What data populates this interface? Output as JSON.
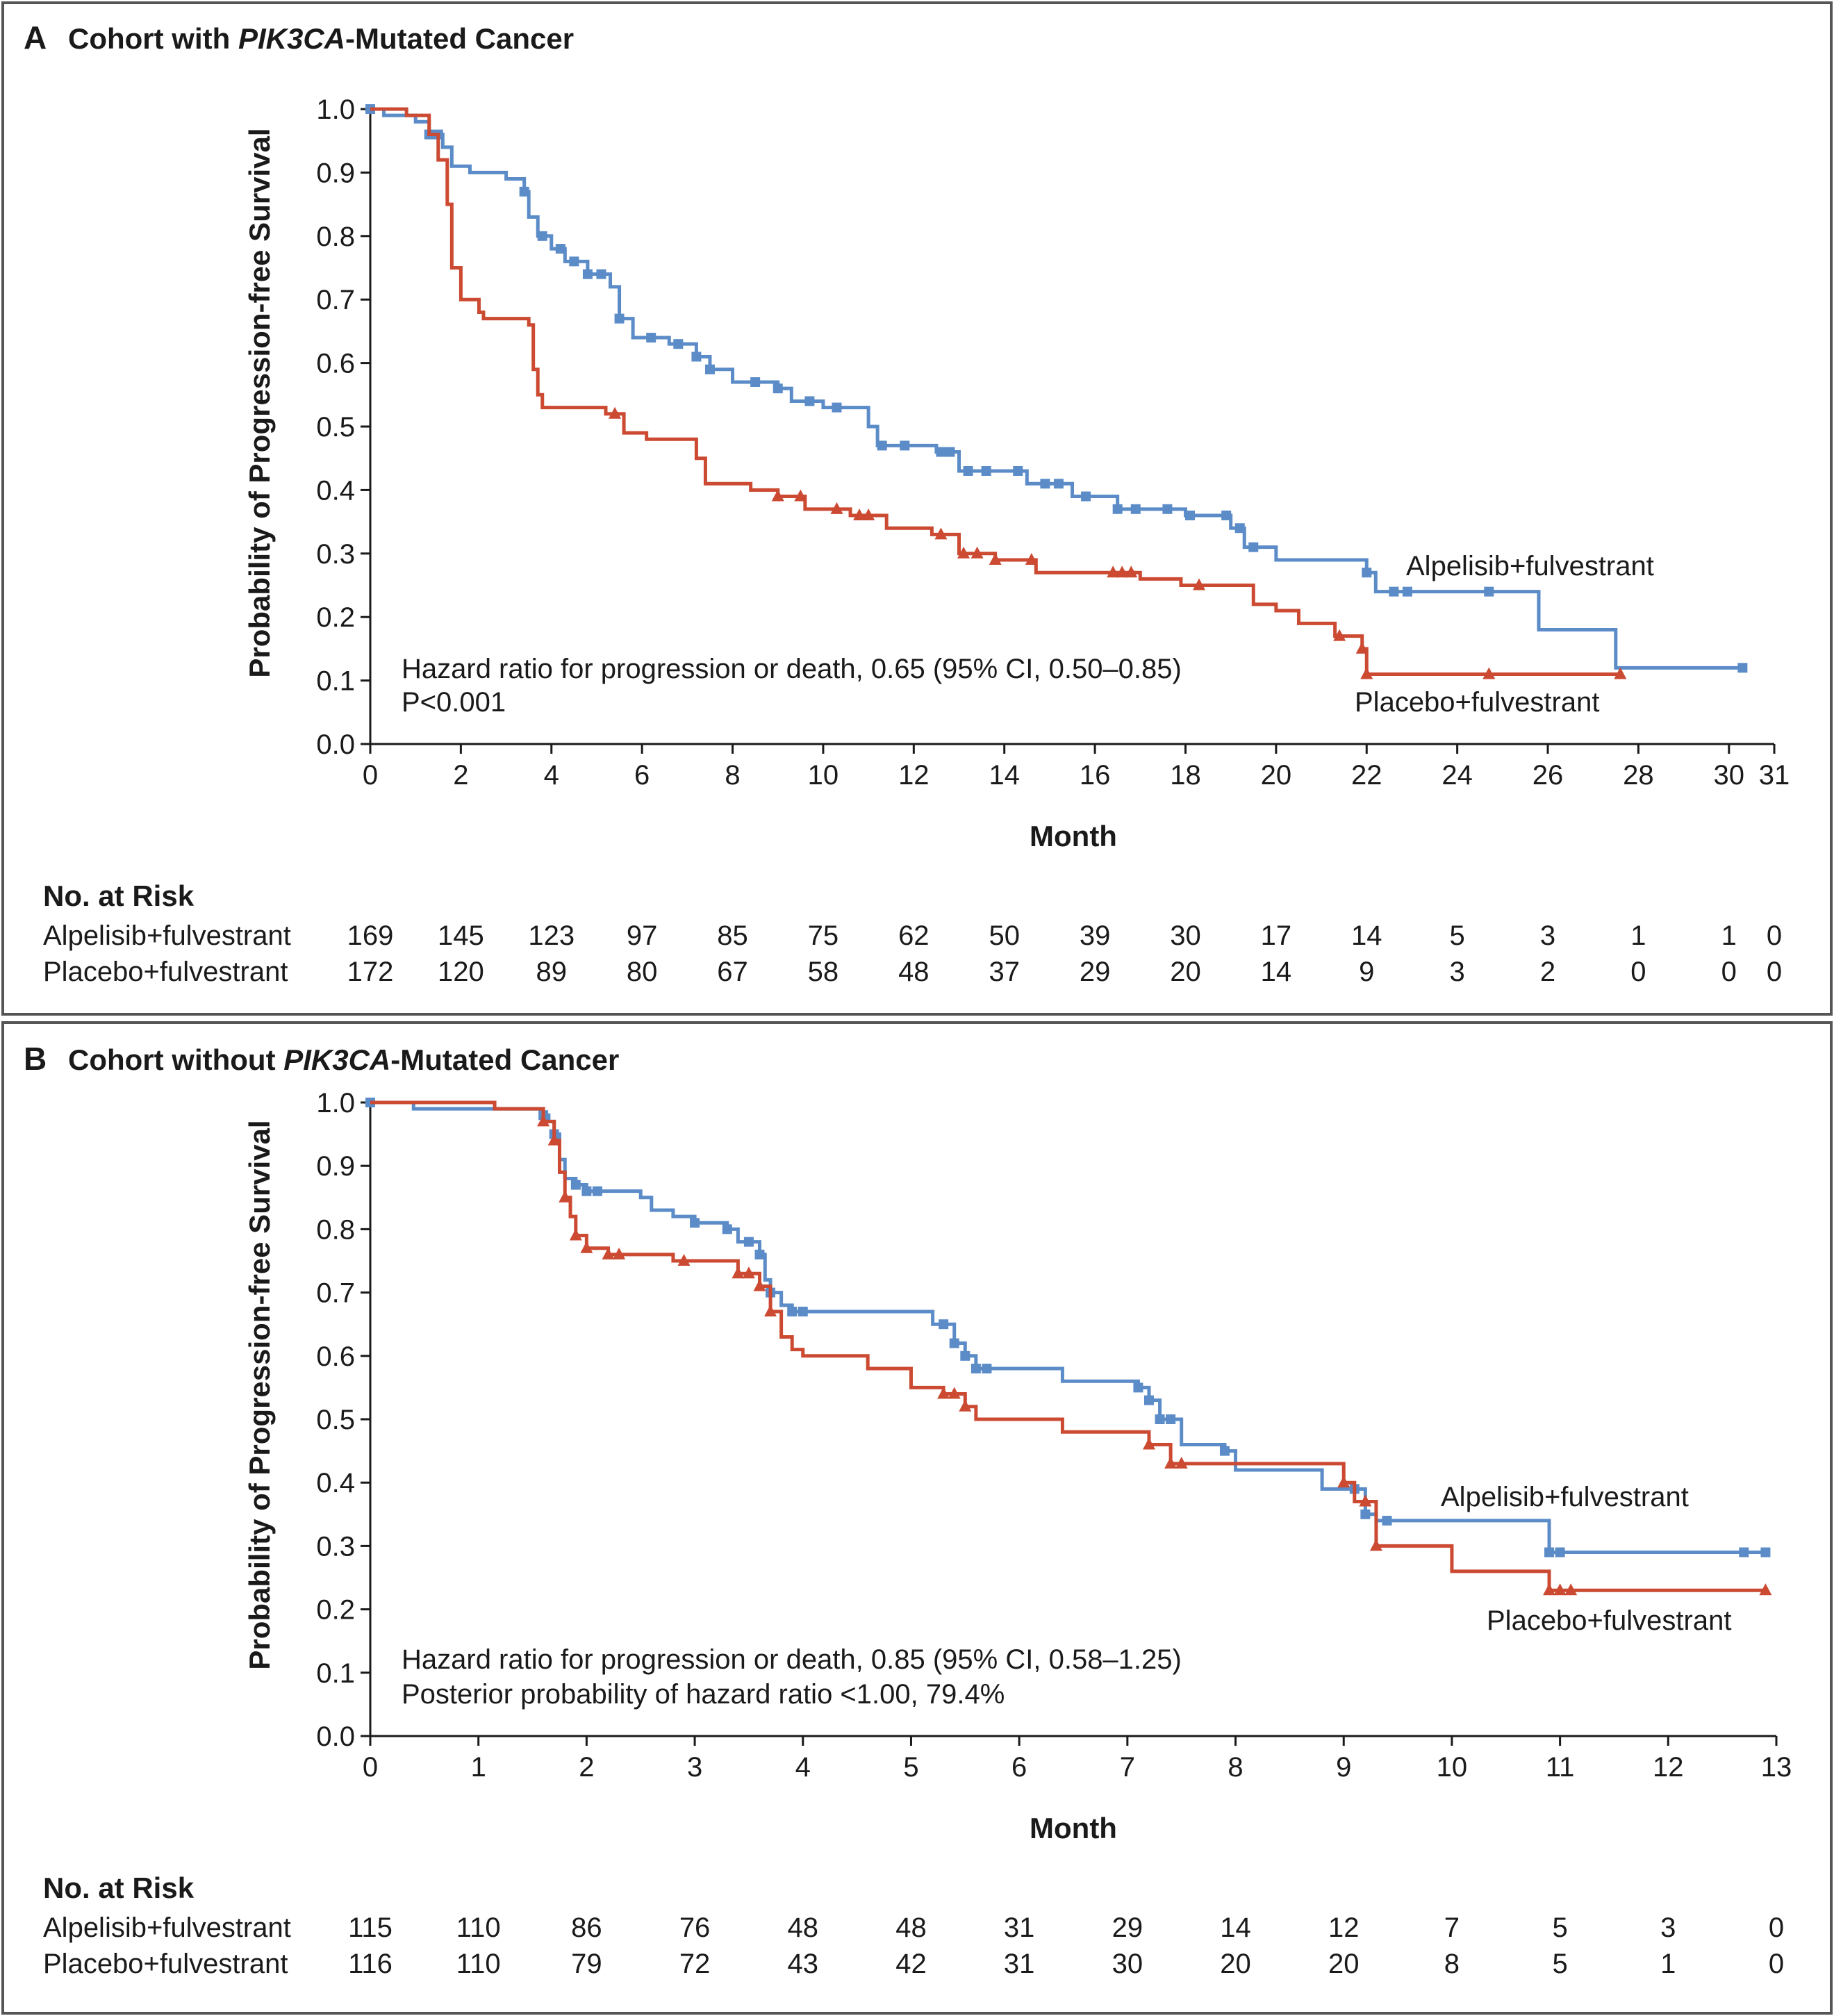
{
  "colors": {
    "alpelisib": "#5b8cc8",
    "placebo": "#cc4a32",
    "frame": "#555555"
  },
  "panels": [
    {
      "letter": "A",
      "title_pre": "Cohort with ",
      "title_italic": "PIK3CA",
      "title_post": "-Mutated Cancer",
      "annotation_line1": "Hazard ratio for progression or death, 0.65 (95% CI, 0.50–0.85)",
      "annotation_line2": "P<0.001",
      "alpelisib_label": "Alpelisib+fulvestrant",
      "placebo_label": "Placebo+fulvestrant",
      "risk": {
        "title": "No. at Risk",
        "rows": [
          {
            "name": "Alpelisib+fulvestrant",
            "values": [
              "169",
              "145",
              "123",
              "97",
              "85",
              "75",
              "62",
              "50",
              "39",
              "30",
              "17",
              "14",
              "5",
              "3",
              "1",
              "1",
              "0"
            ]
          },
          {
            "name": "Placebo+fulvestrant",
            "values": [
              "172",
              "120",
              "89",
              "80",
              "67",
              "58",
              "48",
              "37",
              "29",
              "20",
              "14",
              "9",
              "3",
              "2",
              "0",
              "0",
              "0"
            ]
          }
        ]
      }
    },
    {
      "letter": "B",
      "title_pre": "Cohort without ",
      "title_italic": "PIK3CA",
      "title_post": "-Mutated Cancer",
      "annotation_line1": "Hazard ratio for progression or death, 0.85 (95% CI, 0.58–1.25)",
      "annotation_line2": "Posterior probability of hazard ratio <1.00, 79.4%",
      "alpelisib_label": "Alpelisib+fulvestrant",
      "placebo_label": "Placebo+fulvestrant",
      "risk": {
        "title": "No. at Risk",
        "rows": [
          {
            "name": "Alpelisib+fulvestrant",
            "values": [
              "115",
              "110",
              "86",
              "76",
              "48",
              "48",
              "31",
              "29",
              "14",
              "12",
              "7",
              "5",
              "3",
              "0"
            ]
          },
          {
            "name": "Placebo+fulvestrant",
            "values": [
              "116",
              "110",
              "79",
              "72",
              "43",
              "42",
              "31",
              "30",
              "20",
              "20",
              "8",
              "5",
              "1",
              "0"
            ]
          }
        ]
      }
    }
  ],
  "chart_data": [
    {
      "type": "line",
      "title": "Cohort with PIK3CA-Mutated Cancer",
      "xlabel": "Month",
      "ylabel": "Probability of Progression-free Survival",
      "xlim": [
        0,
        31
      ],
      "ylim": [
        0,
        1.0
      ],
      "xticks": [
        "0",
        "2",
        "4",
        "6",
        "8",
        "10",
        "12",
        "14",
        "16",
        "18",
        "20",
        "22",
        "24",
        "26",
        "28",
        "30",
        "31"
      ],
      "yticks": [
        "0.0",
        "0.1",
        "0.2",
        "0.3",
        "0.4",
        "0.5",
        "0.6",
        "0.7",
        "0.8",
        "0.9",
        "1.0"
      ],
      "risk_times": [
        0,
        2,
        4,
        6,
        8,
        10,
        12,
        14,
        16,
        18,
        20,
        22,
        24,
        26,
        28,
        30,
        31
      ],
      "series": [
        {
          "name": "Alpelisib+fulvestrant",
          "step": [
            [
              0,
              1.0
            ],
            [
              0.3,
              0.99
            ],
            [
              1.0,
              0.98
            ],
            [
              1.3,
              0.96
            ],
            [
              1.6,
              0.94
            ],
            [
              1.8,
              0.91
            ],
            [
              2.2,
              0.9
            ],
            [
              3.0,
              0.89
            ],
            [
              3.4,
              0.87
            ],
            [
              3.5,
              0.83
            ],
            [
              3.7,
              0.8
            ],
            [
              4.0,
              0.78
            ],
            [
              4.3,
              0.76
            ],
            [
              4.8,
              0.74
            ],
            [
              5.3,
              0.72
            ],
            [
              5.5,
              0.67
            ],
            [
              5.8,
              0.64
            ],
            [
              6.6,
              0.63
            ],
            [
              7.2,
              0.61
            ],
            [
              7.5,
              0.59
            ],
            [
              8.0,
              0.57
            ],
            [
              9.0,
              0.56
            ],
            [
              9.3,
              0.54
            ],
            [
              10.0,
              0.53
            ],
            [
              11.0,
              0.5
            ],
            [
              11.2,
              0.47
            ],
            [
              12.5,
              0.46
            ],
            [
              13.0,
              0.43
            ],
            [
              14.5,
              0.41
            ],
            [
              15.5,
              0.39
            ],
            [
              16.5,
              0.37
            ],
            [
              18.0,
              0.36
            ],
            [
              19.0,
              0.34
            ],
            [
              19.3,
              0.31
            ],
            [
              20.0,
              0.29
            ],
            [
              22.0,
              0.27
            ],
            [
              22.2,
              0.24
            ],
            [
              25.8,
              0.18
            ],
            [
              27.5,
              0.12
            ],
            [
              30.3,
              0.12
            ]
          ],
          "censor_times": [
            0,
            1.3,
            1.5,
            3.4,
            3.8,
            4.2,
            4.5,
            4.8,
            5.1,
            5.5,
            6.2,
            6.8,
            7.2,
            7.5,
            8.5,
            9.0,
            9.7,
            10.3,
            11.3,
            11.8,
            12.6,
            12.8,
            13.2,
            13.6,
            14.3,
            14.9,
            15.2,
            15.8,
            16.5,
            16.9,
            17.6,
            18.1,
            18.9,
            19.2,
            19.5,
            22.0,
            22.6,
            22.9,
            24.7,
            30.3
          ]
        },
        {
          "name": "Placebo+fulvestrant",
          "step": [
            [
              0,
              1.0
            ],
            [
              0.8,
              0.99
            ],
            [
              1.3,
              0.96
            ],
            [
              1.5,
              0.92
            ],
            [
              1.7,
              0.85
            ],
            [
              1.8,
              0.75
            ],
            [
              2.0,
              0.7
            ],
            [
              2.4,
              0.68
            ],
            [
              2.5,
              0.67
            ],
            [
              3.5,
              0.66
            ],
            [
              3.6,
              0.59
            ],
            [
              3.7,
              0.55
            ],
            [
              3.8,
              0.53
            ],
            [
              5.2,
              0.52
            ],
            [
              5.6,
              0.49
            ],
            [
              6.1,
              0.48
            ],
            [
              7.2,
              0.45
            ],
            [
              7.4,
              0.41
            ],
            [
              8.4,
              0.4
            ],
            [
              9.0,
              0.39
            ],
            [
              9.6,
              0.37
            ],
            [
              10.6,
              0.36
            ],
            [
              11.4,
              0.34
            ],
            [
              12.4,
              0.33
            ],
            [
              13.0,
              0.3
            ],
            [
              13.8,
              0.29
            ],
            [
              14.7,
              0.27
            ],
            [
              17.0,
              0.26
            ],
            [
              17.9,
              0.25
            ],
            [
              19.5,
              0.22
            ],
            [
              20.0,
              0.21
            ],
            [
              20.5,
              0.19
            ],
            [
              21.3,
              0.17
            ],
            [
              21.9,
              0.15
            ],
            [
              22.0,
              0.11
            ],
            [
              27.6,
              0.11
            ]
          ],
          "censor_times": [
            5.4,
            9.0,
            9.5,
            10.3,
            10.8,
            11.0,
            12.6,
            13.1,
            13.4,
            13.8,
            14.6,
            16.4,
            16.6,
            16.8,
            18.3,
            21.4,
            21.9,
            22.0,
            24.7,
            27.6
          ]
        }
      ]
    },
    {
      "type": "line",
      "title": "Cohort without PIK3CA-Mutated Cancer",
      "xlabel": "Month",
      "ylabel": "Probability of Progression-free Survival",
      "xlim": [
        0,
        13
      ],
      "ylim": [
        0,
        1.0
      ],
      "xticks": [
        "0",
        "1",
        "2",
        "3",
        "4",
        "5",
        "6",
        "7",
        "8",
        "9",
        "10",
        "11",
        "12",
        "13"
      ],
      "yticks": [
        "0.0",
        "0.1",
        "0.2",
        "0.3",
        "0.4",
        "0.5",
        "0.6",
        "0.7",
        "0.8",
        "0.9",
        "1.0"
      ],
      "risk_times": [
        0,
        1,
        2,
        3,
        4,
        5,
        6,
        7,
        8,
        9,
        10,
        11,
        12,
        13
      ],
      "series": [
        {
          "name": "Alpelisib+fulvestrant",
          "step": [
            [
              0,
              1.0
            ],
            [
              0.4,
              0.99
            ],
            [
              1.6,
              0.98
            ],
            [
              1.65,
              0.97
            ],
            [
              1.7,
              0.95
            ],
            [
              1.75,
              0.91
            ],
            [
              1.8,
              0.88
            ],
            [
              1.9,
              0.87
            ],
            [
              2.0,
              0.86
            ],
            [
              2.5,
              0.85
            ],
            [
              2.6,
              0.83
            ],
            [
              2.8,
              0.82
            ],
            [
              3.0,
              0.81
            ],
            [
              3.3,
              0.8
            ],
            [
              3.4,
              0.78
            ],
            [
              3.6,
              0.76
            ],
            [
              3.65,
              0.72
            ],
            [
              3.7,
              0.7
            ],
            [
              3.8,
              0.68
            ],
            [
              3.9,
              0.67
            ],
            [
              5.2,
              0.65
            ],
            [
              5.4,
              0.62
            ],
            [
              5.5,
              0.6
            ],
            [
              5.6,
              0.58
            ],
            [
              6.4,
              0.56
            ],
            [
              7.1,
              0.55
            ],
            [
              7.2,
              0.53
            ],
            [
              7.3,
              0.5
            ],
            [
              7.5,
              0.46
            ],
            [
              7.9,
              0.45
            ],
            [
              8.0,
              0.42
            ],
            [
              8.8,
              0.39
            ],
            [
              9.2,
              0.35
            ],
            [
              9.3,
              0.34
            ],
            [
              10.9,
              0.29
            ],
            [
              12.9,
              0.29
            ]
          ],
          "censor_times": [
            0,
            1.6,
            1.7,
            1.9,
            2.0,
            2.1,
            3.0,
            3.3,
            3.5,
            3.6,
            3.7,
            3.9,
            4.0,
            5.3,
            5.4,
            5.5,
            5.6,
            5.7,
            7.1,
            7.2,
            7.3,
            7.4,
            7.9,
            9.1,
            9.2,
            9.4,
            10.9,
            11.0,
            12.7,
            12.9
          ]
        },
        {
          "name": "Placebo+fulvestrant",
          "step": [
            [
              0,
              1.0
            ],
            [
              1.15,
              0.99
            ],
            [
              1.6,
              0.97
            ],
            [
              1.7,
              0.94
            ],
            [
              1.75,
              0.89
            ],
            [
              1.8,
              0.85
            ],
            [
              1.85,
              0.82
            ],
            [
              1.9,
              0.79
            ],
            [
              2.0,
              0.77
            ],
            [
              2.2,
              0.76
            ],
            [
              2.8,
              0.75
            ],
            [
              3.0,
              0.75
            ],
            [
              3.4,
              0.73
            ],
            [
              3.6,
              0.71
            ],
            [
              3.7,
              0.67
            ],
            [
              3.8,
              0.63
            ],
            [
              3.9,
              0.61
            ],
            [
              4.0,
              0.6
            ],
            [
              4.6,
              0.58
            ],
            [
              5.0,
              0.55
            ],
            [
              5.3,
              0.54
            ],
            [
              5.5,
              0.52
            ],
            [
              5.6,
              0.5
            ],
            [
              6.4,
              0.48
            ],
            [
              7.2,
              0.46
            ],
            [
              7.4,
              0.43
            ],
            [
              8.1,
              0.43
            ],
            [
              9.0,
              0.4
            ],
            [
              9.1,
              0.37
            ],
            [
              9.3,
              0.3
            ],
            [
              10.0,
              0.26
            ],
            [
              10.9,
              0.23
            ],
            [
              12.9,
              0.23
            ]
          ],
          "censor_times": [
            1.6,
            1.7,
            1.8,
            1.9,
            2.0,
            2.2,
            2.3,
            2.9,
            3.4,
            3.5,
            3.6,
            3.7,
            5.3,
            5.4,
            5.5,
            7.2,
            7.4,
            7.5,
            9.0,
            9.2,
            9.3,
            10.9,
            11.0,
            11.1,
            12.9
          ]
        }
      ]
    }
  ]
}
